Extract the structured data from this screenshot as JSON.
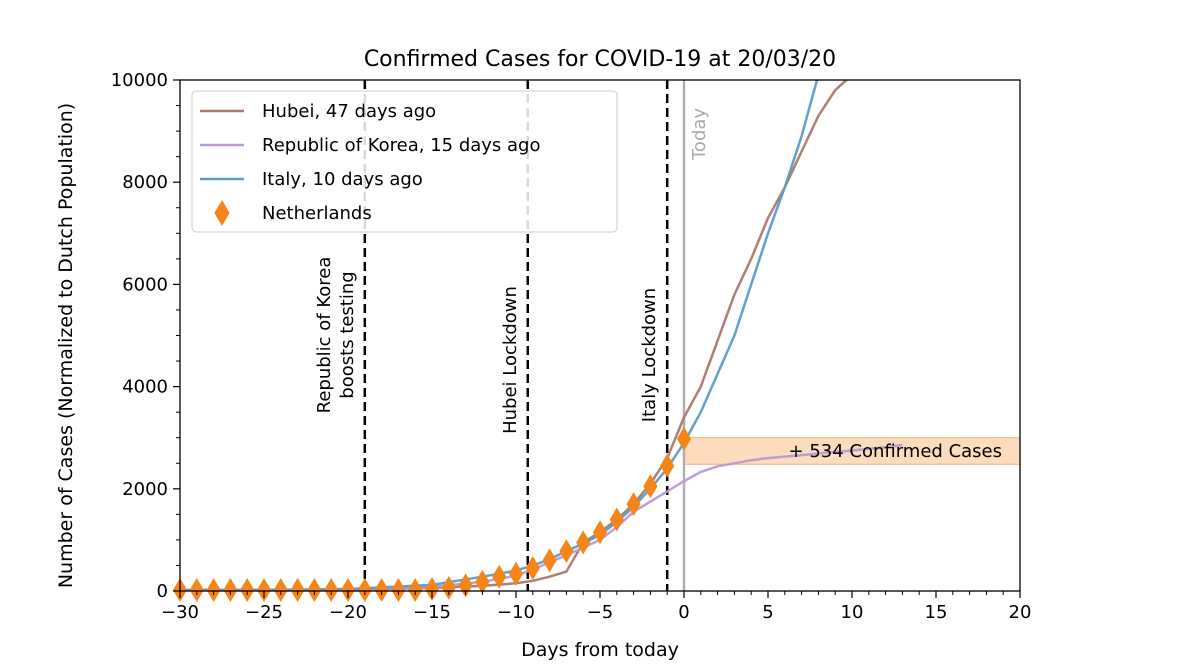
{
  "chart_data": {
    "type": "line",
    "title": "Confirmed Cases for COVID-19 at 20/03/20",
    "xlabel": "Days from today",
    "ylabel": "Number of Cases (Normalized to Dutch Population)",
    "xlim": [
      -30,
      20
    ],
    "ylim": [
      0,
      10000
    ],
    "x_ticks": [
      -30,
      -25,
      -20,
      -15,
      -10,
      -5,
      0,
      5,
      10,
      15,
      20
    ],
    "x_tick_labels": [
      "−30",
      "−25",
      "−20",
      "−15",
      "−10",
      "−5",
      "0",
      "5",
      "10",
      "15",
      "20"
    ],
    "y_ticks": [
      0,
      2000,
      4000,
      6000,
      8000,
      10000
    ],
    "y_tick_labels": [
      "0",
      "2000",
      "4000",
      "6000",
      "8000",
      "10000"
    ],
    "grid": false,
    "legend_position": "top-left",
    "series": [
      {
        "name": "Hubei, 47 days ago",
        "color": "#a9796b",
        "x": [
          -30,
          -25,
          -20,
          -15,
          -12,
          -10,
          -9,
          -8,
          -7,
          -6,
          -5,
          -4,
          -3,
          -2,
          -1,
          0,
          1,
          2,
          3,
          4,
          5,
          6,
          7,
          8,
          9,
          10
        ],
        "y": [
          20,
          20,
          30,
          60,
          100,
          150,
          200,
          280,
          380,
          950,
          1150,
          1400,
          1700,
          2100,
          2600,
          3400,
          4000,
          4900,
          5800,
          6500,
          7300,
          7900,
          8600,
          9300,
          9800,
          10100
        ]
      },
      {
        "name": "Republic of Korea, 15 days ago",
        "color": "#b89ad4",
        "x": [
          -30,
          -25,
          -20,
          -15,
          -12,
          -10,
          -9,
          -8,
          -7,
          -6,
          -5,
          -4,
          -3,
          -2,
          -1,
          0,
          1,
          2,
          3,
          4,
          5,
          6,
          7,
          8,
          9,
          10,
          11,
          12,
          13
        ],
        "y": [
          20,
          20,
          30,
          80,
          180,
          300,
          420,
          560,
          700,
          850,
          1000,
          1250,
          1550,
          1750,
          1950,
          2150,
          2330,
          2440,
          2500,
          2560,
          2600,
          2630,
          2660,
          2690,
          2720,
          2750,
          2780,
          2810,
          2860
        ]
      },
      {
        "name": "Italy, 10 days ago",
        "color": "#5b9bc8",
        "x": [
          -30,
          -25,
          -20,
          -15,
          -12,
          -10,
          -9,
          -8,
          -7,
          -6,
          -5,
          -4,
          -3,
          -2,
          -1,
          0,
          1,
          2,
          3,
          4,
          5,
          6,
          7,
          8
        ],
        "y": [
          20,
          20,
          40,
          120,
          280,
          400,
          500,
          620,
          780,
          930,
          1100,
          1350,
          1650,
          2000,
          2400,
          2900,
          3500,
          4250,
          5000,
          6000,
          7000,
          7900,
          8900,
          10100
        ]
      },
      {
        "name": "Netherlands",
        "color": "#f58518",
        "marker": "diamond",
        "x": [
          -30,
          -29,
          -28,
          -27,
          -26,
          -25,
          -24,
          -23,
          -22,
          -21,
          -20,
          -19,
          -18,
          -17,
          -16,
          -15,
          -14,
          -13,
          -12,
          -11,
          -10,
          -9,
          -8,
          -7,
          -6,
          -5,
          -4,
          -3,
          -2,
          -1,
          0
        ],
        "y": [
          20,
          20,
          20,
          20,
          20,
          20,
          20,
          20,
          20,
          20,
          20,
          20,
          20,
          20,
          20,
          40,
          60,
          110,
          180,
          280,
          340,
          450,
          600,
          780,
          950,
          1150,
          1400,
          1700,
          2050,
          2450,
          2980
        ]
      }
    ],
    "vlines": [
      {
        "x": -19,
        "label": "Republic of Korea\nboosts testing",
        "style": "dashed",
        "color": "#000000"
      },
      {
        "x": -9.3,
        "label": "Hubei Lockdown",
        "style": "dashed",
        "color": "#000000"
      },
      {
        "x": -1,
        "label": "Italy Lockdown",
        "style": "dashed",
        "color": "#000000"
      },
      {
        "x": 0,
        "label": "Today",
        "style": "solid",
        "color": "#b0b0b0"
      }
    ],
    "band": {
      "x": [
        0,
        20
      ],
      "y": [
        2480,
        3000
      ],
      "color": "#fbdcbc",
      "label": "+ 534 Confirmed Cases"
    }
  }
}
